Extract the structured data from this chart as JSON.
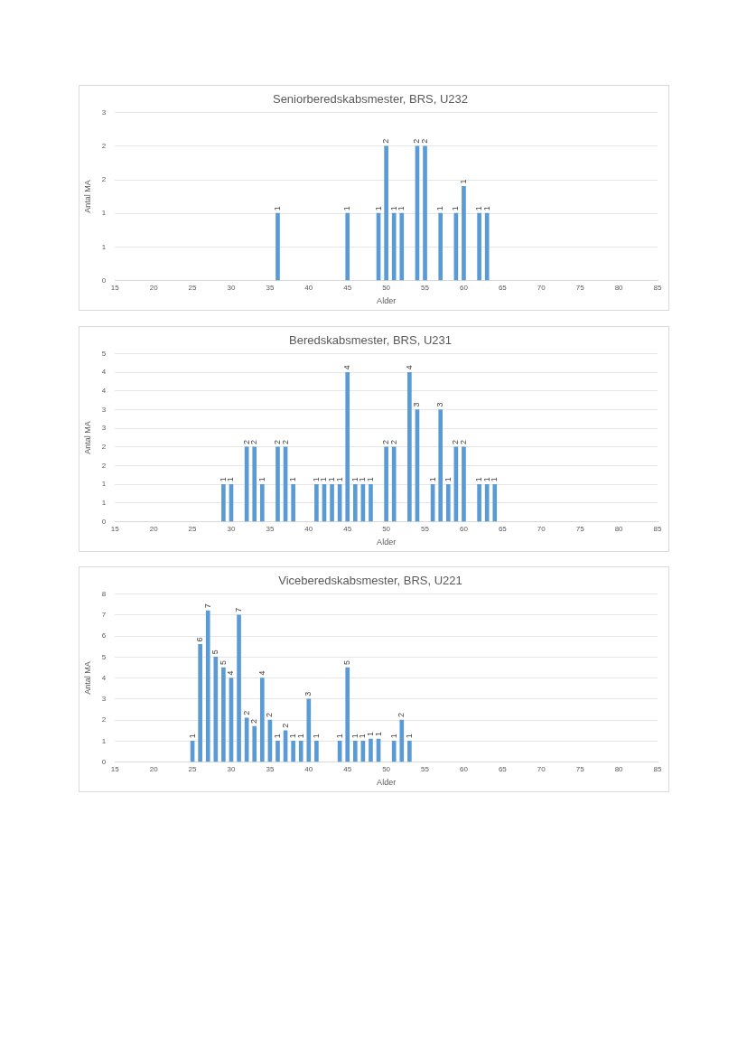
{
  "chart_data": [
    {
      "type": "bar",
      "title": "Seniorberedskabsmester, BRS, U232",
      "xlabel": "Alder",
      "ylabel": "Antal MA",
      "color": "#5b9bd5",
      "grid": "y",
      "x": [
        36,
        45,
        49,
        50,
        51,
        52,
        54,
        55,
        57,
        59,
        60,
        62,
        63
      ],
      "values": [
        1,
        1,
        1,
        2,
        1,
        1,
        2,
        2,
        1,
        1,
        1.4,
        1,
        1
      ],
      "value_labels": [
        "1",
        "1",
        "1",
        "2",
        "1",
        "1",
        "2",
        "2",
        "1",
        "1",
        "1",
        "1",
        "1"
      ],
      "xlim": [
        15,
        85
      ],
      "xticks": [
        15,
        20,
        25,
        30,
        35,
        40,
        45,
        50,
        55,
        60,
        65,
        70,
        75,
        80,
        85
      ],
      "ylim": [
        0,
        2.5
      ],
      "yticks": [
        0,
        {
          "value": 0.5,
          "label": "1"
        },
        1,
        {
          "value": 1.5,
          "label": "2"
        },
        2,
        {
          "value": 2.5,
          "label": "3"
        }
      ]
    },
    {
      "type": "bar",
      "title": "Beredskabsmester, BRS, U231",
      "xlabel": "Alder",
      "ylabel": "Antal MA",
      "color": "#5b9bd5",
      "grid": "y",
      "x": [
        29,
        30,
        32,
        33,
        34,
        36,
        37,
        38,
        41,
        42,
        43,
        44,
        45,
        46,
        47,
        48,
        50,
        51,
        53,
        54,
        56,
        57,
        58,
        59,
        60,
        62,
        63,
        64
      ],
      "values": [
        1,
        1,
        2,
        2,
        1,
        2,
        2,
        1,
        1,
        1,
        1,
        1,
        4,
        1,
        1,
        1,
        2,
        2,
        4,
        3,
        1,
        3,
        1,
        2,
        2,
        1,
        1,
        1
      ],
      "value_labels": [
        "1",
        "1",
        "2",
        "2",
        "1",
        "2",
        "2",
        "1",
        "1",
        "1",
        "1",
        "1",
        "4",
        "1",
        "1",
        "1",
        "2",
        "2",
        "4",
        "3",
        "1",
        "3",
        "1",
        "2",
        "2",
        "1",
        "1",
        "1"
      ],
      "xlim": [
        15,
        85
      ],
      "xticks": [
        15,
        20,
        25,
        30,
        35,
        40,
        45,
        50,
        55,
        60,
        65,
        70,
        75,
        80,
        85
      ],
      "ylim": [
        0,
        4.5
      ],
      "yticks": [
        0,
        {
          "value": 0.5,
          "label": "1"
        },
        1,
        {
          "value": 1.5,
          "label": "2"
        },
        2,
        {
          "value": 2.5,
          "label": "3"
        },
        3,
        {
          "value": 3.5,
          "label": "4"
        },
        4,
        {
          "value": 4.5,
          "label": "5"
        }
      ]
    },
    {
      "type": "bar",
      "title": "Viceberedskabsmester, BRS, U221",
      "xlabel": "Alder",
      "ylabel": "Antal MA",
      "color": "#5b9bd5",
      "grid": "y",
      "x": [
        25,
        26,
        27,
        28,
        29,
        30,
        31,
        32,
        33,
        34,
        35,
        36,
        37,
        38,
        39,
        40,
        41,
        44,
        45,
        46,
        47,
        48,
        49,
        51,
        52,
        53
      ],
      "values": [
        1,
        5.6,
        7.2,
        5,
        4.5,
        4,
        7,
        2.1,
        1.7,
        4,
        2,
        1,
        1.5,
        1,
        1,
        3,
        1,
        1,
        4.5,
        1,
        1,
        1.1,
        1.1,
        1,
        2,
        1
      ],
      "value_labels": [
        "1",
        "6",
        "7",
        "5",
        "5",
        "4",
        "7",
        "2",
        "2",
        "4",
        "2",
        "1",
        "2",
        "1",
        "1",
        "3",
        "1",
        "1",
        "5",
        "1",
        "1",
        "1",
        "1",
        "1",
        "2",
        "1"
      ],
      "xlim": [
        15,
        85
      ],
      "xticks": [
        15,
        20,
        25,
        30,
        35,
        40,
        45,
        50,
        55,
        60,
        65,
        70,
        75,
        80,
        85
      ],
      "ylim": [
        0,
        8
      ],
      "yticks": [
        0,
        1,
        2,
        3,
        4,
        5,
        6,
        7,
        8
      ]
    }
  ]
}
